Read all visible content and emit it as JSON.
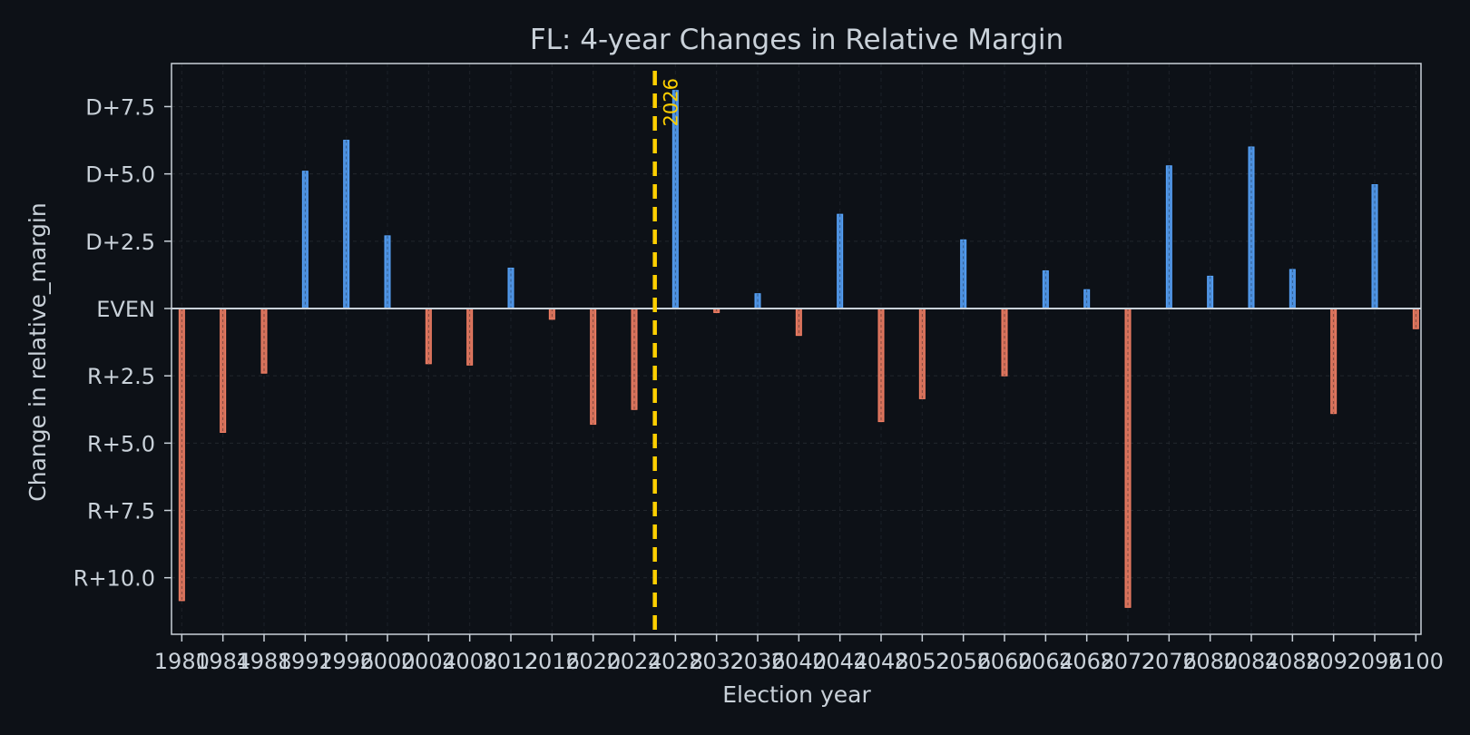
{
  "chart_data": {
    "type": "bar",
    "title": "FL: 4-year Changes in Relative Margin",
    "xlabel": "Election year",
    "ylabel": "Change in relative_margin",
    "x": [
      1980,
      1984,
      1988,
      1992,
      1996,
      2000,
      2004,
      2008,
      2012,
      2016,
      2020,
      2024,
      2028,
      2032,
      2036,
      2040,
      2044,
      2048,
      2052,
      2056,
      2060,
      2064,
      2068,
      2072,
      2076,
      2080,
      2084,
      2088,
      2092,
      2096,
      2100
    ],
    "values": [
      -10.85,
      -4.6,
      -2.4,
      5.1,
      6.25,
      2.7,
      -2.05,
      -2.1,
      1.5,
      -0.4,
      -4.3,
      -3.75,
      8.1,
      -0.15,
      0.55,
      -1.0,
      3.5,
      -4.2,
      -3.35,
      2.55,
      -2.5,
      1.4,
      0.7,
      -11.1,
      5.3,
      1.2,
      6.0,
      1.45,
      -3.9,
      4.6,
      -0.75
    ],
    "xlim": [
      1979,
      2100.5
    ],
    "ylim": [
      -12.1,
      9.1
    ],
    "y_ticks": [
      7.5,
      5.0,
      2.5,
      0,
      -2.5,
      -5.0,
      -7.5,
      -10.0
    ],
    "y_tick_labels": [
      "D+7.5",
      "D+5.0",
      "D+2.5",
      "EVEN",
      "R+2.5",
      "R+5.0",
      "R+7.5",
      "R+10.0"
    ],
    "x_tick_labels": [
      "1980",
      "1984",
      "1988",
      "1992",
      "1996",
      "2000",
      "2004",
      "2008",
      "2012",
      "2016",
      "2020",
      "2024",
      "2028",
      "2032",
      "2036",
      "2040",
      "2044",
      "2048",
      "2052",
      "2056",
      "2060",
      "2064",
      "2068",
      "2072",
      "2076",
      "2080",
      "2084",
      "2088",
      "2092",
      "2096",
      "2100"
    ],
    "reference_line": {
      "x": 2026,
      "label": "2026",
      "color": "#ffd000"
    },
    "colors": {
      "positive": "#58a6ff",
      "negative": "#f78166",
      "background": "#0d1117",
      "grid": "#30363d",
      "zero_line": "#c9d1d9"
    },
    "grid": true,
    "legend": "none"
  }
}
